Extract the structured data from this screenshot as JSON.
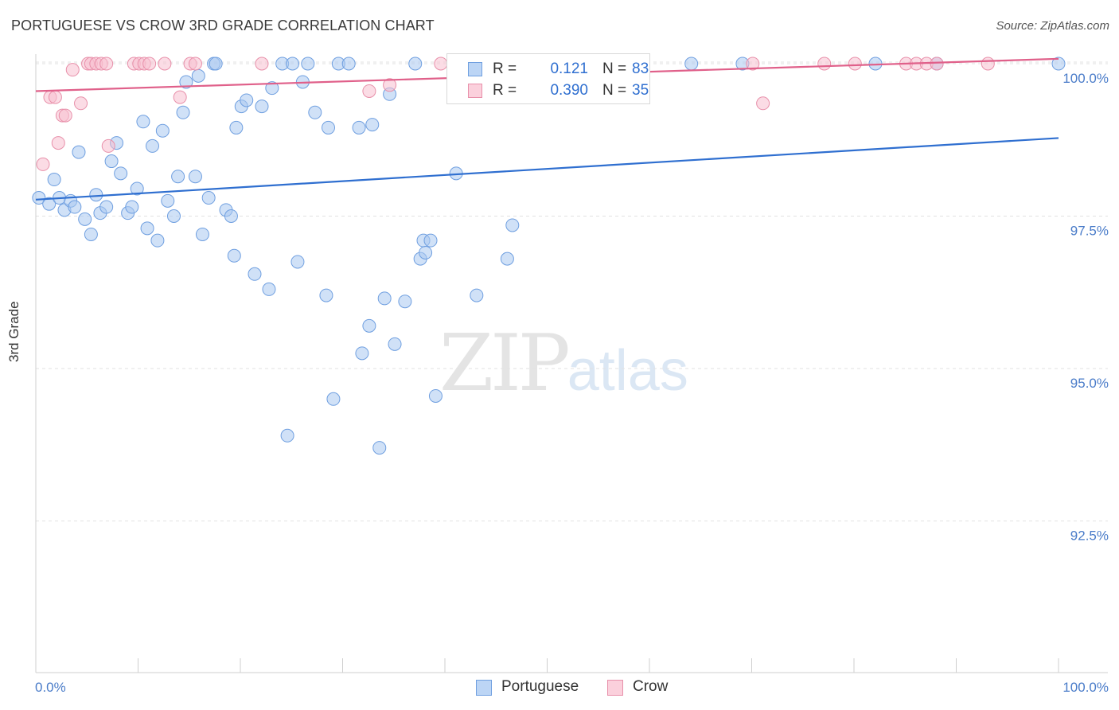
{
  "header": {
    "title": "PORTUGUESE VS CROW 3RD GRADE CORRELATION CHART",
    "source": "Source: ZipAtlas.com"
  },
  "watermark": {
    "zip": "ZIP",
    "atlas": "atlas"
  },
  "legend": {
    "rows": [
      {
        "r_label": "R =",
        "r_value": "0.121",
        "n_label": "N =",
        "n_value": "83",
        "color": "#a9c8f0",
        "border": "#6f9fe0"
      },
      {
        "r_label": "R =",
        "r_value": "0.390",
        "n_label": "N =",
        "n_value": "35",
        "color": "#f8c0d0",
        "border": "#e890aa"
      }
    ]
  },
  "bottom_legend": {
    "portuguese": "Portuguese",
    "crow": "Crow"
  },
  "chart_data": {
    "type": "scatter",
    "title": "PORTUGUESE VS CROW 3RD GRADE CORRELATION CHART",
    "xlabel": "",
    "ylabel": "3rd Grade",
    "xlim": [
      0,
      100
    ],
    "ylim": [
      90.5,
      100.3
    ],
    "x_tick_labels": [
      "0.0%",
      "100.0%"
    ],
    "y_ticks": [
      92.5,
      95.0,
      97.5,
      100.0
    ],
    "y_tick_labels": [
      "92.5%",
      "95.0%",
      "97.5%",
      "100.0%"
    ],
    "grid": true,
    "legend_position": "top-center",
    "series": [
      {
        "name": "Portuguese",
        "color": "#a9c8f0",
        "edge": "#6f9fe0",
        "line_color": "#2f6fd0",
        "trend": {
          "x0": 0,
          "y0": 97.77,
          "x1": 100,
          "y1": 98.78
        },
        "points": [
          [
            0.3,
            97.8
          ],
          [
            1.3,
            97.7
          ],
          [
            1.8,
            98.1
          ],
          [
            2.3,
            97.8
          ],
          [
            2.8,
            97.6
          ],
          [
            3.4,
            97.75
          ],
          [
            3.8,
            97.65
          ],
          [
            4.2,
            98.55
          ],
          [
            4.8,
            97.45
          ],
          [
            5.4,
            97.2
          ],
          [
            5.9,
            97.85
          ],
          [
            6.3,
            97.55
          ],
          [
            6.9,
            97.65
          ],
          [
            7.4,
            98.4
          ],
          [
            7.9,
            98.7
          ],
          [
            8.3,
            98.2
          ],
          [
            9.0,
            97.55
          ],
          [
            9.4,
            97.65
          ],
          [
            9.9,
            97.95
          ],
          [
            10.5,
            99.05
          ],
          [
            10.9,
            97.3
          ],
          [
            11.4,
            98.65
          ],
          [
            11.9,
            97.1
          ],
          [
            12.4,
            98.9
          ],
          [
            12.9,
            97.75
          ],
          [
            13.5,
            97.5
          ],
          [
            13.9,
            98.15
          ],
          [
            14.4,
            99.2
          ],
          [
            14.7,
            99.7
          ],
          [
            15.6,
            98.15
          ],
          [
            15.9,
            99.8
          ],
          [
            16.3,
            97.2
          ],
          [
            16.9,
            97.8
          ],
          [
            17.4,
            100.0
          ],
          [
            17.6,
            100.0
          ],
          [
            18.6,
            97.6
          ],
          [
            19.1,
            97.5
          ],
          [
            19.4,
            96.85
          ],
          [
            19.6,
            98.95
          ],
          [
            20.1,
            99.3
          ],
          [
            20.6,
            99.4
          ],
          [
            21.4,
            96.55
          ],
          [
            22.1,
            99.3
          ],
          [
            22.8,
            96.3
          ],
          [
            23.1,
            99.6
          ],
          [
            24.1,
            100.0
          ],
          [
            24.6,
            93.9
          ],
          [
            25.1,
            100.0
          ],
          [
            25.6,
            96.75
          ],
          [
            26.1,
            99.7
          ],
          [
            26.6,
            100.0
          ],
          [
            27.3,
            99.2
          ],
          [
            28.4,
            96.2
          ],
          [
            28.6,
            98.95
          ],
          [
            29.1,
            94.5
          ],
          [
            29.6,
            100.0
          ],
          [
            30.6,
            100.0
          ],
          [
            31.6,
            98.95
          ],
          [
            31.9,
            95.25
          ],
          [
            32.9,
            99.0
          ],
          [
            32.6,
            95.7
          ],
          [
            33.6,
            93.7
          ],
          [
            34.1,
            96.15
          ],
          [
            34.6,
            99.5
          ],
          [
            35.1,
            95.4
          ],
          [
            36.1,
            96.1
          ],
          [
            37.1,
            100.0
          ],
          [
            37.6,
            96.8
          ],
          [
            37.9,
            97.1
          ],
          [
            38.1,
            96.9
          ],
          [
            38.6,
            97.1
          ],
          [
            39.1,
            94.55
          ],
          [
            41.1,
            98.2
          ],
          [
            43.1,
            96.2
          ],
          [
            46.1,
            96.8
          ],
          [
            46.6,
            97.35
          ],
          [
            56.1,
            100.0
          ],
          [
            57.1,
            100.0
          ],
          [
            64.1,
            100.0
          ],
          [
            69.1,
            100.0
          ],
          [
            82.1,
            100.0
          ],
          [
            88.1,
            100.0
          ],
          [
            100.0,
            100.0
          ]
        ]
      },
      {
        "name": "Crow",
        "color": "#f8c0d0",
        "edge": "#e890aa",
        "line_color": "#e0608a",
        "trend": {
          "x0": 0,
          "y0": 99.55,
          "x1": 100,
          "y1": 100.08
        },
        "points": [
          [
            0.7,
            98.35
          ],
          [
            1.4,
            99.45
          ],
          [
            1.9,
            99.45
          ],
          [
            2.2,
            98.7
          ],
          [
            2.6,
            99.15
          ],
          [
            2.9,
            99.15
          ],
          [
            3.6,
            99.9
          ],
          [
            4.4,
            99.35
          ],
          [
            5.1,
            100.0
          ],
          [
            5.4,
            100.0
          ],
          [
            5.9,
            100.0
          ],
          [
            6.4,
            100.0
          ],
          [
            6.9,
            100.0
          ],
          [
            7.1,
            98.65
          ],
          [
            9.6,
            100.0
          ],
          [
            10.1,
            100.0
          ],
          [
            10.6,
            100.0
          ],
          [
            11.1,
            100.0
          ],
          [
            12.6,
            100.0
          ],
          [
            14.1,
            99.45
          ],
          [
            15.1,
            100.0
          ],
          [
            15.6,
            100.0
          ],
          [
            22.1,
            100.0
          ],
          [
            32.6,
            99.55
          ],
          [
            34.6,
            99.65
          ],
          [
            39.6,
            100.0
          ],
          [
            70.1,
            100.0
          ],
          [
            71.1,
            99.35
          ],
          [
            77.1,
            100.0
          ],
          [
            80.1,
            100.0
          ],
          [
            85.1,
            100.0
          ],
          [
            86.1,
            100.0
          ],
          [
            87.1,
            100.0
          ],
          [
            88.1,
            100.0
          ],
          [
            93.1,
            100.0
          ]
        ]
      }
    ]
  }
}
